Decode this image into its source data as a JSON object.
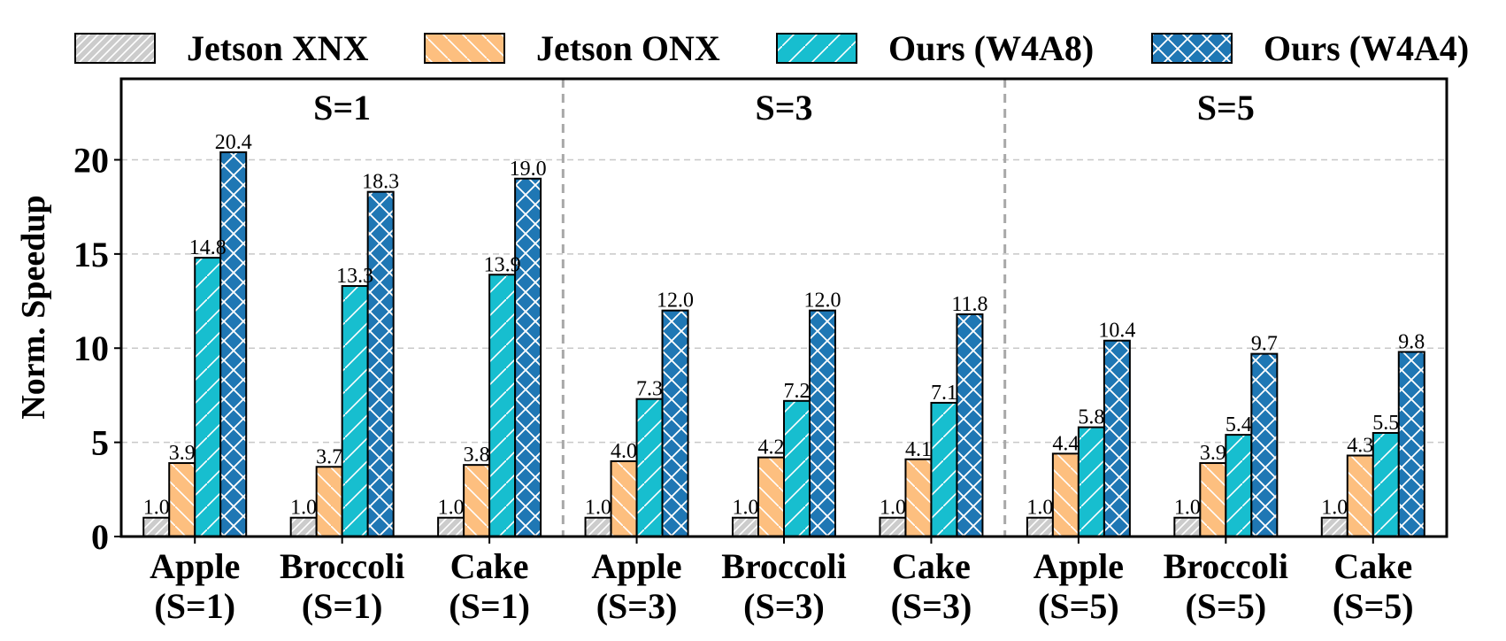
{
  "chart_data": {
    "type": "bar",
    "ylabel": "Norm. Speedup",
    "xlabel": "",
    "ylim": [
      0,
      24.3
    ],
    "yticks": [
      "0",
      "5",
      "10",
      "15",
      "20"
    ],
    "grid": true,
    "legend_position": "top",
    "sections": [
      "S=1",
      "S=3",
      "S=5"
    ],
    "categories": [
      [
        "Apple",
        "(S=1)"
      ],
      [
        "Broccoli",
        "(S=1)"
      ],
      [
        "Cake",
        "(S=1)"
      ],
      [
        "Apple",
        "(S=3)"
      ],
      [
        "Broccoli",
        "(S=3)"
      ],
      [
        "Cake",
        "(S=3)"
      ],
      [
        "Apple",
        "(S=5)"
      ],
      [
        "Broccoli",
        "(S=5)"
      ],
      [
        "Cake",
        "(S=5)"
      ]
    ],
    "series": [
      {
        "name": "Jetson XNX",
        "color": "#cccccc",
        "hatch": "diag-light",
        "values": [
          1.0,
          1.0,
          1.0,
          1.0,
          1.0,
          1.0,
          1.0,
          1.0,
          1.0
        ],
        "labels": [
          "1.0",
          "1.0",
          "1.0",
          "1.0",
          "1.0",
          "1.0",
          "1.0",
          "1.0",
          "1.0"
        ]
      },
      {
        "name": "Jetson ONX",
        "color": "#fdbf7f",
        "hatch": "back-diag",
        "values": [
          3.9,
          3.7,
          3.8,
          4.0,
          4.2,
          4.1,
          4.4,
          3.9,
          4.3
        ],
        "labels": [
          "3.9",
          "3.7",
          "3.8",
          "4.0",
          "4.2",
          "4.1",
          "4.4",
          "3.9",
          "4.3"
        ]
      },
      {
        "name": "Ours (W4A8)",
        "color": "#17becf",
        "hatch": "diag-sparse",
        "values": [
          14.8,
          13.3,
          13.9,
          7.3,
          7.2,
          7.1,
          5.8,
          5.4,
          5.5
        ],
        "labels": [
          "14.8",
          "13.3",
          "13.9",
          "7.3",
          "7.2",
          "7.1",
          "5.8",
          "5.4",
          "5.5"
        ]
      },
      {
        "name": "Ours (W4A4)",
        "color": "#1f77b4",
        "hatch": "cross",
        "values": [
          20.4,
          18.3,
          19.0,
          12.0,
          12.0,
          11.8,
          10.4,
          9.7,
          9.8
        ],
        "labels": [
          "20.4",
          "18.3",
          "19.0",
          "12.0",
          "12.0",
          "11.8",
          "10.4",
          "9.7",
          "9.8"
        ]
      }
    ]
  }
}
